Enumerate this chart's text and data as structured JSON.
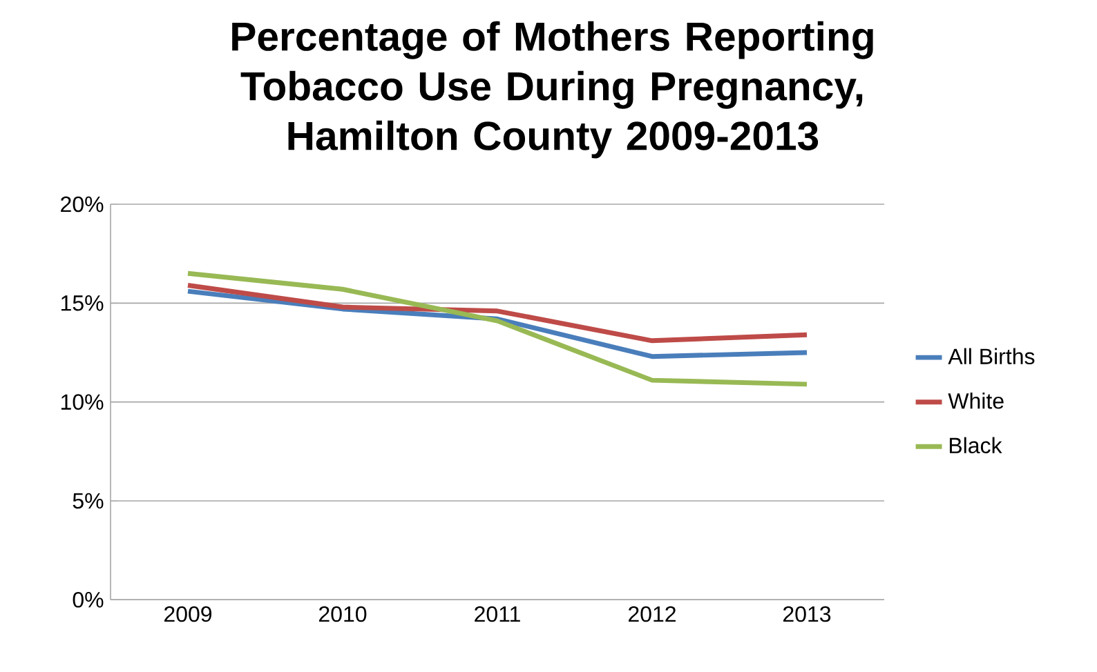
{
  "chart_data": {
    "type": "line",
    "title": "Percentage of  Mothers Reporting Tobacco Use During Pregnancy, Hamilton County 2009-2013",
    "categories": [
      "2009",
      "2010",
      "2011",
      "2012",
      "2013"
    ],
    "series": [
      {
        "name": "All Births",
        "color": "#4a7ebb",
        "values": [
          15.6,
          14.7,
          14.2,
          12.3,
          12.5
        ]
      },
      {
        "name": "White",
        "color": "#be4b48",
        "values": [
          15.9,
          14.8,
          14.6,
          13.1,
          13.4
        ]
      },
      {
        "name": "Black",
        "color": "#98b954",
        "values": [
          16.5,
          15.7,
          14.1,
          11.1,
          10.9
        ]
      }
    ],
    "ylim": [
      0,
      20
    ],
    "yticks": [
      {
        "value": 0,
        "label": "0%"
      },
      {
        "value": 5,
        "label": "5%"
      },
      {
        "value": 10,
        "label": "10%"
      },
      {
        "value": 15,
        "label": "15%"
      },
      {
        "value": 20,
        "label": "20%"
      }
    ],
    "grid": "y",
    "legend": "right",
    "marker": "none",
    "line_style": "solid"
  }
}
